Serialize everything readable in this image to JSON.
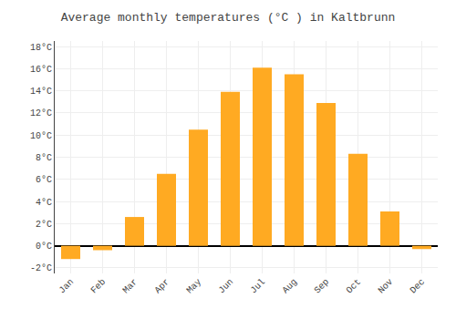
{
  "chart_data": {
    "type": "bar",
    "title": "Average monthly temperatures (°C ) in Kaltbrunn",
    "categories": [
      "Jan",
      "Feb",
      "Mar",
      "Apr",
      "May",
      "Jun",
      "Jul",
      "Aug",
      "Sep",
      "Oct",
      "Nov",
      "Dec"
    ],
    "values": [
      -1.2,
      -0.4,
      2.6,
      6.5,
      10.5,
      13.9,
      16.1,
      15.5,
      12.9,
      8.3,
      3.1,
      -0.3
    ],
    "color": "#FFAA22",
    "ylim": [
      -2.5,
      18.5
    ],
    "yticks": [
      {
        "value": -2,
        "label": "-2°C"
      },
      {
        "value": 0,
        "label": "0°C"
      },
      {
        "value": 2,
        "label": "2°C"
      },
      {
        "value": 4,
        "label": "4°C"
      },
      {
        "value": 6,
        "label": "6°C"
      },
      {
        "value": 8,
        "label": "8°C"
      },
      {
        "value": 10,
        "label": "10°C"
      },
      {
        "value": 12,
        "label": "12°C"
      },
      {
        "value": 14,
        "label": "14°C"
      },
      {
        "value": 16,
        "label": "16°C"
      },
      {
        "value": 18,
        "label": "18°C"
      }
    ],
    "grid": true
  }
}
